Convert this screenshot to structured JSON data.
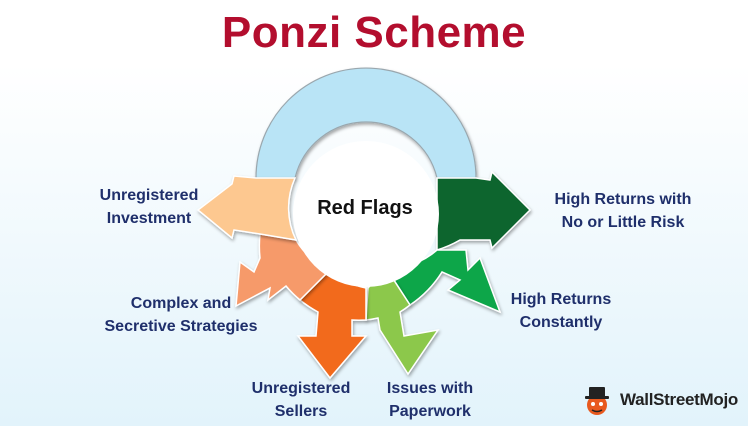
{
  "title": "Ponzi Scheme",
  "center_label": "Red Flags",
  "flags": [
    {
      "lines": [
        "High Returns with",
        "No or Little Risk"
      ],
      "color": "#11652f"
    },
    {
      "lines": [
        "High Returns",
        "Constantly"
      ],
      "color": "#10a64a"
    },
    {
      "lines": [
        "Issues with",
        "Paperwork"
      ],
      "color": "#8cc84b"
    },
    {
      "lines": [
        "Unregistered",
        "Sellers"
      ],
      "color": "#f26a1b"
    },
    {
      "lines": [
        "Complex and",
        "Secretive Strategies"
      ],
      "color": "#f69a6a"
    },
    {
      "lines": [
        "Unregistered",
        "Investment"
      ],
      "color": "#fdc890"
    }
  ],
  "top_segment_color": "#b9e4f6",
  "brand": {
    "name": "WallStreetMojo"
  }
}
